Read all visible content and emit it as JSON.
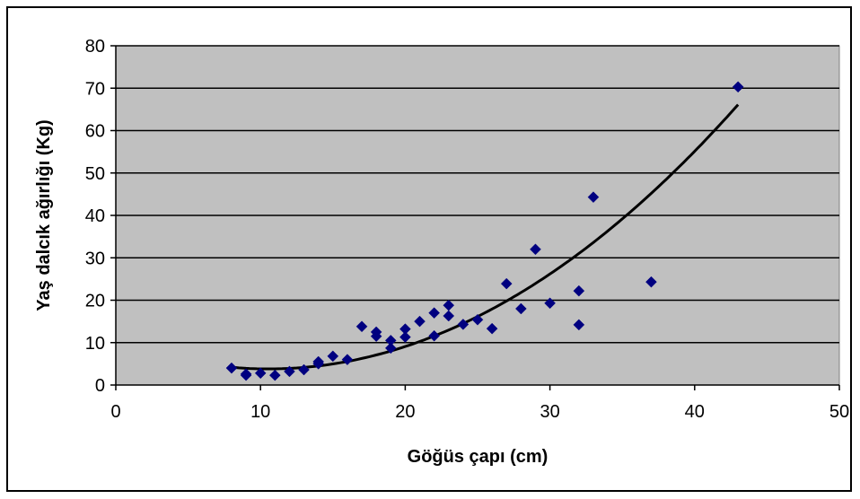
{
  "chart_data": {
    "type": "scatter",
    "xlabel": "Göğüs çapı (cm)",
    "ylabel": "Yaş dalcık ağırlığı (Kg)",
    "xlim": [
      0,
      50
    ],
    "ylim": [
      0,
      80
    ],
    "x_ticks": [
      "0",
      "10",
      "20",
      "30",
      "40",
      "50"
    ],
    "y_ticks": [
      "0",
      "10",
      "20",
      "30",
      "40",
      "50",
      "60",
      "70",
      "80"
    ],
    "grid": "horizontal",
    "plot_background": "#C0C0C0",
    "colors": {
      "points": "#000080",
      "trendline": "#000000"
    },
    "series": [
      {
        "marker": "diamond",
        "points": [
          [
            8,
            4.0
          ],
          [
            9,
            2.3
          ],
          [
            9,
            2.6
          ],
          [
            10,
            2.8
          ],
          [
            11,
            2.3
          ],
          [
            12,
            3.2
          ],
          [
            13,
            3.6
          ],
          [
            14,
            5.5
          ],
          [
            14,
            5.0
          ],
          [
            15,
            6.8
          ],
          [
            16,
            6.0
          ],
          [
            17,
            13.8
          ],
          [
            18,
            12.5
          ],
          [
            18,
            11.5
          ],
          [
            19,
            10.5
          ],
          [
            19,
            8.7
          ],
          [
            20,
            13.2
          ],
          [
            20,
            11.3
          ],
          [
            21,
            15.0
          ],
          [
            22,
            17.0
          ],
          [
            22,
            11.6
          ],
          [
            23,
            18.8
          ],
          [
            23,
            16.3
          ],
          [
            24,
            14.3
          ],
          [
            25,
            15.4
          ],
          [
            26,
            13.3
          ],
          [
            27,
            23.9
          ],
          [
            28,
            18.0
          ],
          [
            29,
            32.0
          ],
          [
            30,
            19.3
          ],
          [
            32,
            22.2
          ],
          [
            32,
            14.2
          ],
          [
            33,
            44.3
          ],
          [
            37,
            24.3
          ],
          [
            43,
            70.3
          ]
        ]
      },
      {
        "type": "trendline",
        "coefficients": [
          10.4,
          -1.25,
          0.0592
        ],
        "x_range": [
          8,
          43
        ]
      }
    ]
  }
}
